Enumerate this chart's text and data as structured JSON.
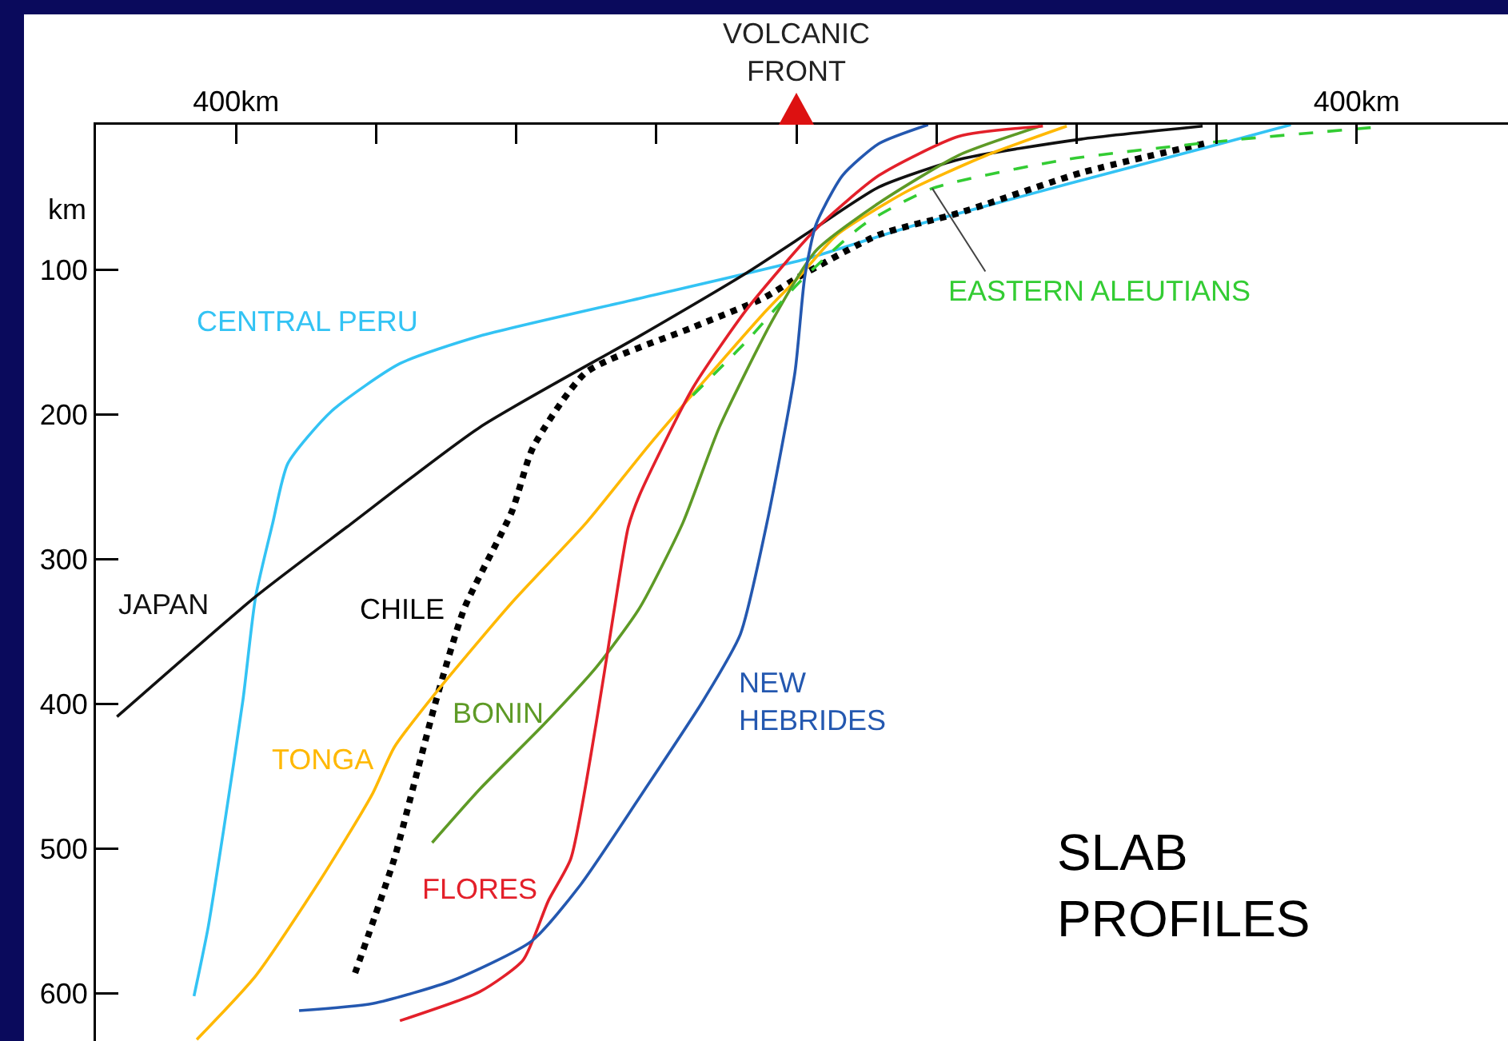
{
  "chart_data": {
    "type": "line",
    "title": "SLAB\nPROFILES",
    "ylabel": "km",
    "xlim": [
      -500,
      508
    ],
    "ylim": [
      633,
      0
    ],
    "xticks": [
      {
        "value": -400,
        "label": "400km"
      },
      {
        "value": -300,
        "label": null
      },
      {
        "value": -200,
        "label": null
      },
      {
        "value": -100,
        "label": null
      },
      {
        "value": 0,
        "label": null
      },
      {
        "value": 100,
        "label": null
      },
      {
        "value": 200,
        "label": null
      },
      {
        "value": 300,
        "label": null
      },
      {
        "value": 400,
        "label": "400km"
      }
    ],
    "yticks": [
      100,
      200,
      300,
      400,
      500,
      600
    ],
    "grid": false,
    "legend": false,
    "marker": "none",
    "line_style": "solid",
    "annotations": [
      "VOLCANIC\nFRONT"
    ],
    "series": [
      {
        "name": "CENTRAL PERU",
        "color": "#33c3f4",
        "x": [
          353,
          307,
          86,
          6,
          -112,
          -226,
          -283,
          -332,
          -363,
          -374,
          -386,
          -395,
          -409,
          -420,
          -430
        ],
        "values": [
          0,
          12,
          69,
          93,
          120,
          146,
          165,
          198,
          234,
          276,
          326,
          397,
          488,
          555,
          602
        ]
      },
      {
        "name": "JAPAN",
        "color": "#111111",
        "x": [
          290,
          203,
          116,
          59,
          14,
          -35,
          -112,
          -226,
          -321,
          -386,
          -485
        ],
        "values": [
          1,
          10,
          24,
          43,
          71,
          102,
          146,
          209,
          278,
          326,
          409
        ]
      },
      {
        "name": "CHILE",
        "color": "#000000",
        "line_style": "dotted",
        "x": [
          291,
          204,
          116,
          59,
          2,
          -24,
          -74,
          -150,
          -188,
          -203,
          -237,
          -257,
          -272,
          -287,
          -315
        ],
        "values": [
          13,
          33,
          61,
          76,
          105,
          120,
          140,
          171,
          223,
          267,
          334,
          397,
          452,
          507,
          586
        ]
      },
      {
        "name": "TONGA",
        "color": "#ffb800",
        "x": [
          193,
          136,
          79,
          29,
          2,
          -24,
          -104,
          -150,
          -203,
          -257,
          -287,
          -303,
          -340,
          -386,
          -428
        ],
        "values": [
          1,
          21,
          46,
          76,
          105,
          131,
          220,
          275,
          330,
          392,
          430,
          463,
          522,
          588,
          632
        ]
      },
      {
        "name": "BONIN",
        "color": "#5e9a26",
        "x": [
          174,
          116,
          59,
          14,
          -17,
          -55,
          -81,
          -112,
          -143,
          -180,
          -226,
          -260
        ],
        "values": [
          1,
          21,
          54,
          87,
          135,
          209,
          275,
          334,
          375,
          414,
          459,
          496
        ]
      },
      {
        "name": "FLORES",
        "color": "#e3202a",
        "x": [
          176,
          116,
          59,
          14,
          -35,
          -74,
          -112,
          -120,
          -131,
          -143,
          -161,
          -177,
          -195,
          -226,
          -283
        ],
        "values": [
          1,
          8,
          35,
          72,
          127,
          182,
          256,
          278,
          341,
          414,
          507,
          536,
          577,
          599,
          619
        ]
      },
      {
        "name": "NEW HEBRIDES",
        "color": "#2458b0",
        "x": [
          94,
          59,
          33,
          14,
          6,
          -1,
          -21,
          -40,
          -66,
          -108,
          -154,
          -189,
          -245,
          -302,
          -355
        ],
        "values": [
          0,
          13,
          35,
          69,
          105,
          171,
          275,
          352,
          397,
          459,
          525,
          564,
          591,
          607,
          612
        ]
      },
      {
        "name": "EASTERN ALEUTIANS",
        "color": "#33cc33",
        "line_style": "dashed",
        "x": [
          410,
          307,
          193,
          97,
          48,
          2,
          -35,
          -74
        ],
        "values": [
          2,
          11,
          24,
          44,
          69,
          109,
          149,
          187
        ]
      }
    ]
  }
}
